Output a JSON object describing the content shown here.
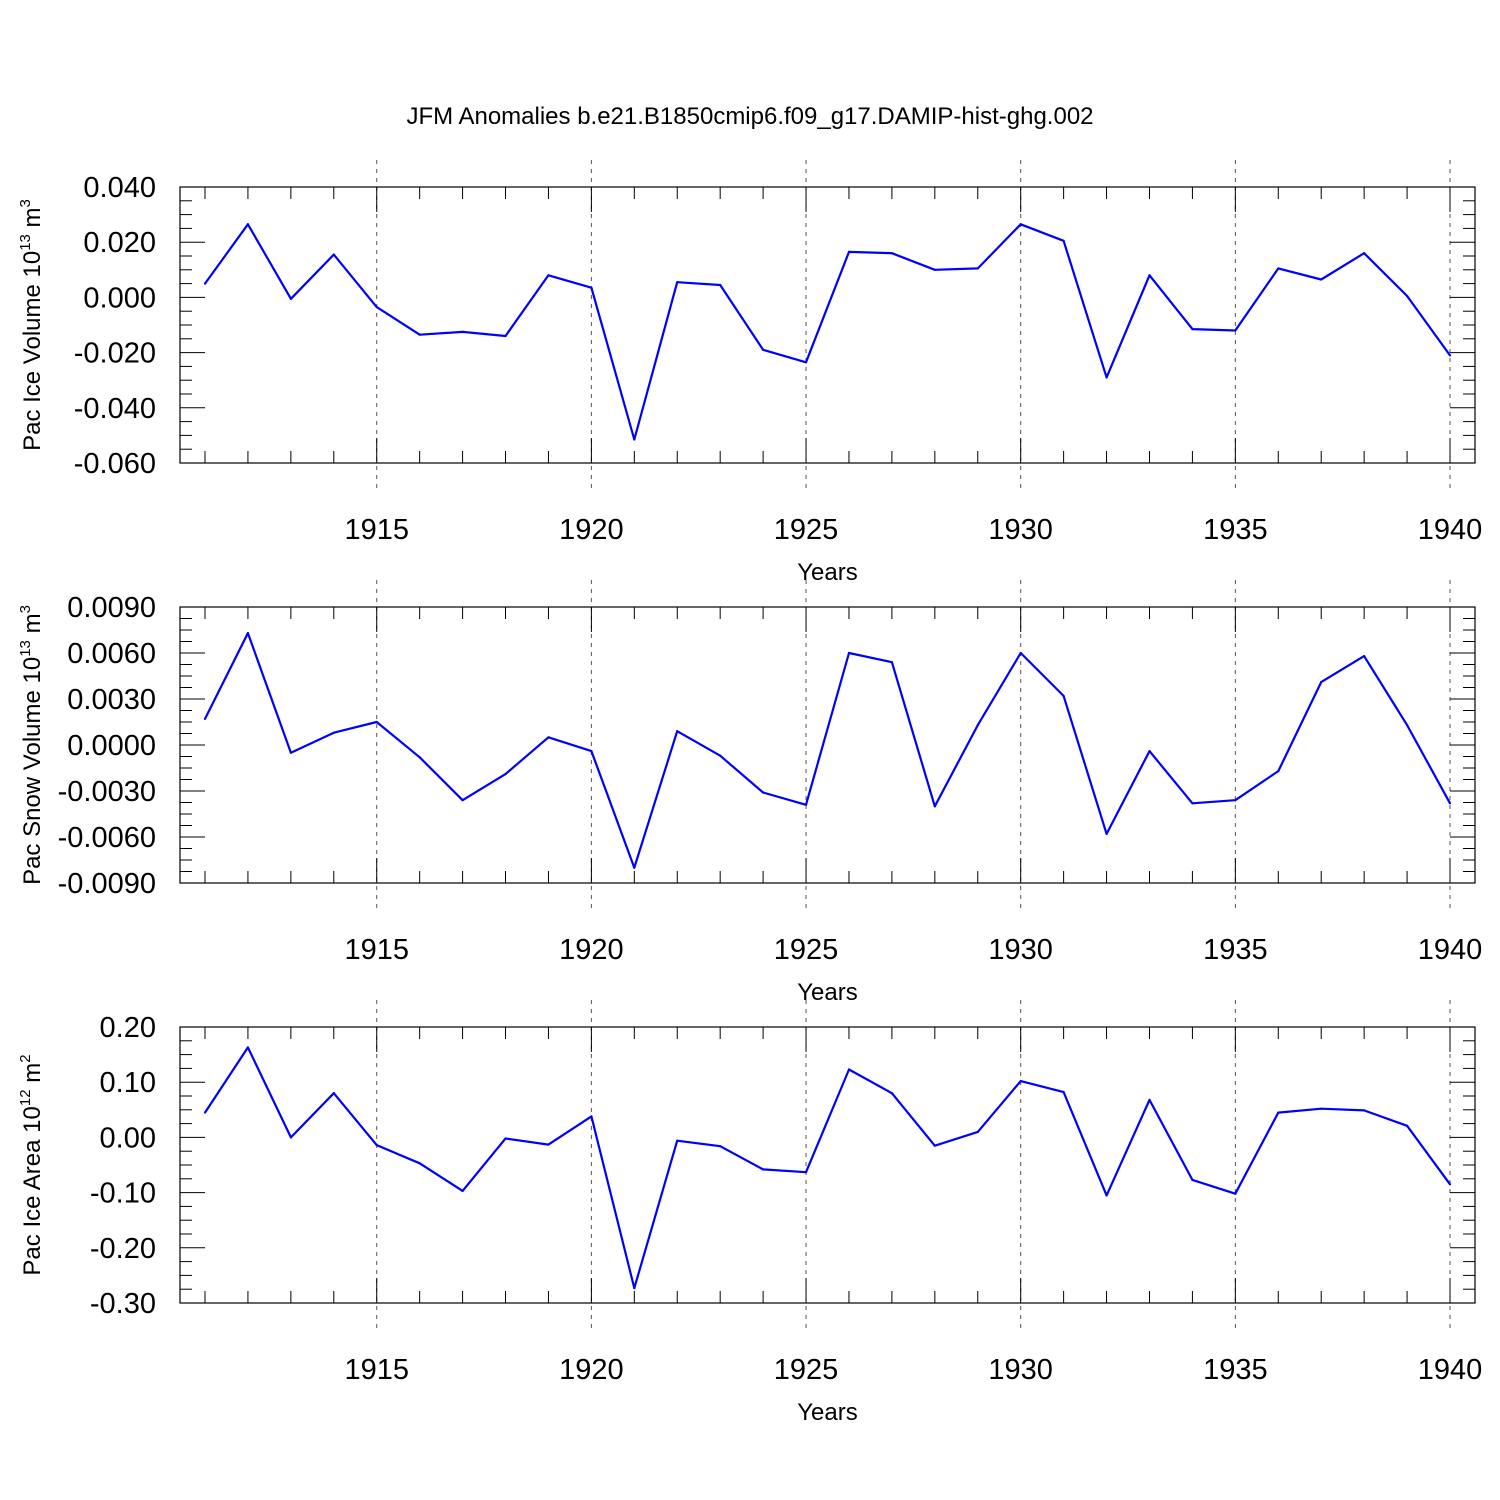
{
  "chart_data": {
    "type": "line",
    "title": "JFM Anomalies b.e21.B1850cmip6.f09_g17.DAMIP-hist-ghg.002",
    "line_color": "#0000ff",
    "x_ticks": [
      1915,
      1920,
      1925,
      1930,
      1935,
      1940
    ],
    "x_tick_labels": [
      "1915",
      "1920",
      "1925",
      "1930",
      "1935",
      "1940"
    ],
    "xlim": [
      1911,
      1940
    ],
    "grid": "dashed vertical lines at major x ticks",
    "panels": [
      {
        "name": "ice-volume",
        "ylabel": "Pac Ice Volume 10",
        "ylabel_exponent": "13",
        "ylabel_unit": " m",
        "ylabel_unit_exponent": "3",
        "xlabel": "Years",
        "ylim": [
          -0.06,
          0.04
        ],
        "y_ticks": [
          0.04,
          0.02,
          0.0,
          -0.02,
          -0.04,
          -0.06
        ],
        "y_tick_labels": [
          "0.040",
          "0.020",
          "0.000",
          "-0.020",
          "-0.040",
          "-0.060"
        ],
        "series": {
          "name": "Pac Ice Volume",
          "x": [
            1911,
            1912,
            1913,
            1914,
            1915,
            1916,
            1917,
            1918,
            1919,
            1920,
            1921,
            1922,
            1923,
            1924,
            1925,
            1926,
            1927,
            1928,
            1929,
            1930,
            1931,
            1932,
            1933,
            1934,
            1935,
            1936,
            1937,
            1938,
            1939,
            1940
          ],
          "values": [
            0.005,
            0.0265,
            -0.0005,
            0.0155,
            -0.0035,
            -0.0135,
            -0.0125,
            -0.014,
            0.008,
            0.0035,
            -0.0515,
            0.0055,
            0.0045,
            -0.019,
            -0.0235,
            0.0165,
            0.016,
            0.01,
            0.0105,
            0.0265,
            0.0205,
            -0.029,
            0.008,
            -0.0115,
            -0.012,
            0.0105,
            0.0065,
            0.016,
            0.0005,
            -0.021
          ]
        }
      },
      {
        "name": "snow-volume",
        "ylabel": "Pac Snow Volume 10",
        "ylabel_exponent": "13",
        "ylabel_unit": " m",
        "ylabel_unit_exponent": "3",
        "xlabel": "Years",
        "ylim": [
          -0.009,
          0.009
        ],
        "y_ticks": [
          0.009,
          0.006,
          0.003,
          0.0,
          -0.003,
          -0.006,
          -0.009
        ],
        "y_tick_labels": [
          "0.0090",
          "0.0060",
          "0.0030",
          "0.0000",
          "-0.0030",
          "-0.0060",
          "-0.0090"
        ],
        "series": {
          "name": "Pac Snow Volume",
          "x": [
            1911,
            1912,
            1913,
            1914,
            1915,
            1916,
            1917,
            1918,
            1919,
            1920,
            1921,
            1922,
            1923,
            1924,
            1925,
            1926,
            1927,
            1928,
            1929,
            1930,
            1931,
            1932,
            1933,
            1934,
            1935,
            1936,
            1937,
            1938,
            1939,
            1940
          ],
          "values": [
            0.0017,
            0.0073,
            -0.0005,
            0.0008,
            0.0015,
            -0.0008,
            -0.0036,
            -0.0019,
            0.0005,
            -0.0004,
            -0.008,
            0.0009,
            -0.0007,
            -0.0031,
            -0.0039,
            0.006,
            0.0054,
            -0.004,
            0.0013,
            0.006,
            0.0032,
            -0.0058,
            -0.0004,
            -0.0038,
            -0.0036,
            -0.0017,
            0.0041,
            0.0058,
            0.0013,
            -0.0038
          ]
        }
      },
      {
        "name": "ice-area",
        "ylabel": "Pac Ice Area 10",
        "ylabel_exponent": "12",
        "ylabel_unit": " m",
        "ylabel_unit_exponent": "2",
        "xlabel": "Years",
        "ylim": [
          -0.3,
          0.2
        ],
        "y_ticks": [
          0.2,
          0.1,
          0.0,
          -0.1,
          -0.2,
          -0.3
        ],
        "y_tick_labels": [
          "0.20",
          "0.10",
          "0.00",
          "-0.10",
          "-0.20",
          "-0.30"
        ],
        "series": {
          "name": "Pac Ice Area",
          "x": [
            1911,
            1912,
            1913,
            1914,
            1915,
            1916,
            1917,
            1918,
            1919,
            1920,
            1921,
            1922,
            1923,
            1924,
            1925,
            1926,
            1927,
            1928,
            1929,
            1930,
            1931,
            1932,
            1933,
            1934,
            1935,
            1936,
            1937,
            1938,
            1939,
            1940
          ],
          "values": [
            0.045,
            0.163,
            0.0,
            0.08,
            -0.014,
            -0.047,
            -0.097,
            -0.002,
            -0.013,
            0.038,
            -0.273,
            -0.006,
            -0.016,
            -0.058,
            -0.063,
            0.123,
            0.08,
            -0.015,
            0.01,
            0.102,
            0.082,
            -0.105,
            0.068,
            -0.077,
            -0.102,
            0.045,
            0.052,
            0.049,
            0.021,
            -0.085
          ]
        }
      }
    ]
  }
}
